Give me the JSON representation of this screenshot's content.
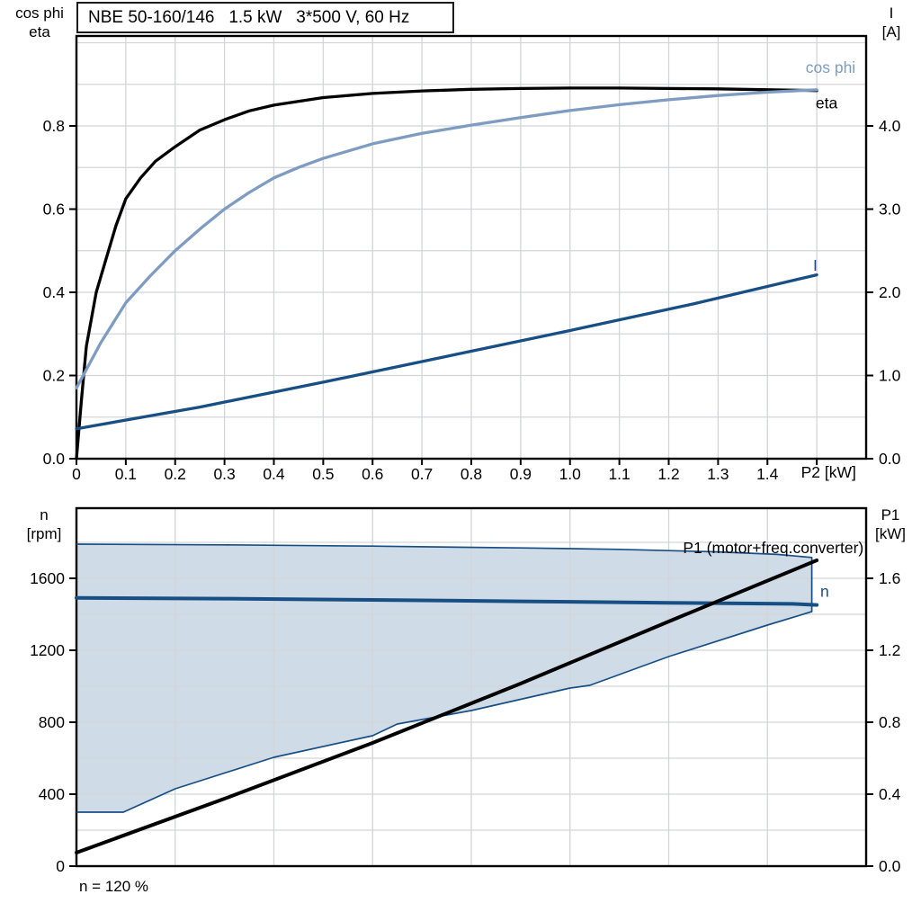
{
  "header": {
    "title": "NBE 50-160/146   1.5 kW   3*500 V, 60 Hz"
  },
  "labels": {
    "top_left": [
      "cos phi",
      "eta"
    ],
    "top_right": [
      "I",
      "[A]"
    ],
    "bottom_left": [
      "n",
      "[rpm]"
    ],
    "bottom_right": [
      "P1",
      "[kW]"
    ],
    "footnote": "n = 120 %"
  },
  "colors": {
    "black": "#000000",
    "dark_blue": "#174F85",
    "light_blue": "#7E9CC1",
    "area_fill": "#CFDBE7",
    "grid": "#D3D5D8",
    "frame": "#000000"
  },
  "chart_data": [
    {
      "type": "line",
      "title": "NBE 50-160/146   1.5 kW   3*500 V, 60 Hz",
      "xlabel": "P2 [kW]",
      "ylabel_left": "cos phi / eta",
      "ylabel_right": "I [A]",
      "x_axis": {
        "min": 0,
        "max": 1.6,
        "grid_step": 0.1,
        "ticks": [
          {
            "v": 0,
            "label": "0"
          },
          {
            "v": 0.1,
            "label": "0.1"
          },
          {
            "v": 0.2,
            "label": "0.2"
          },
          {
            "v": 0.3,
            "label": "0.3"
          },
          {
            "v": 0.4,
            "label": "0.4"
          },
          {
            "v": 0.5,
            "label": "0.5"
          },
          {
            "v": 0.6,
            "label": "0.6"
          },
          {
            "v": 0.7,
            "label": "0.7"
          },
          {
            "v": 0.8,
            "label": "0.8"
          },
          {
            "v": 0.9,
            "label": "0.9"
          },
          {
            "v": 1.0,
            "label": "1.0"
          },
          {
            "v": 1.1,
            "label": "1.1"
          },
          {
            "v": 1.2,
            "label": "1.2"
          },
          {
            "v": 1.3,
            "label": "1.3"
          },
          {
            "v": 1.4,
            "label": "1.4"
          },
          {
            "v": 1.5,
            "label": ""
          }
        ]
      },
      "y_left": {
        "min": 0,
        "max": 1.0162,
        "grid_step": 0.1,
        "ticks": [
          {
            "v": 0,
            "label": "0.0"
          },
          {
            "v": 0.2,
            "label": "0.2"
          },
          {
            "v": 0.4,
            "label": "0.4"
          },
          {
            "v": 0.6,
            "label": "0.6"
          },
          {
            "v": 0.8,
            "label": "0.8"
          }
        ]
      },
      "y_right": {
        "min": 0,
        "max": 5.081,
        "ticks": [
          {
            "v": 0,
            "label": "0.0"
          },
          {
            "v": 1,
            "label": "1.0"
          },
          {
            "v": 2,
            "label": "2.0"
          },
          {
            "v": 3,
            "label": "3.0"
          },
          {
            "v": 4,
            "label": "4.0"
          }
        ]
      },
      "series": [
        {
          "name": "eta",
          "axis": "left",
          "color": "black",
          "width": 3.3,
          "points": [
            [
              0,
              0
            ],
            [
              0.01,
              0.14
            ],
            [
              0.02,
              0.27
            ],
            [
              0.04,
              0.4
            ],
            [
              0.06,
              0.48
            ],
            [
              0.08,
              0.56
            ],
            [
              0.1,
              0.625
            ],
            [
              0.13,
              0.675
            ],
            [
              0.16,
              0.715
            ],
            [
              0.2,
              0.75
            ],
            [
              0.25,
              0.79
            ],
            [
              0.3,
              0.815
            ],
            [
              0.35,
              0.836
            ],
            [
              0.4,
              0.85
            ],
            [
              0.5,
              0.868
            ],
            [
              0.6,
              0.878
            ],
            [
              0.7,
              0.884
            ],
            [
              0.8,
              0.888
            ],
            [
              0.9,
              0.89
            ],
            [
              1.0,
              0.891
            ],
            [
              1.1,
              0.891
            ],
            [
              1.2,
              0.89
            ],
            [
              1.3,
              0.889
            ],
            [
              1.4,
              0.887
            ],
            [
              1.5,
              0.885
            ]
          ]
        },
        {
          "name": "cos phi",
          "axis": "left",
          "color": "light_blue",
          "width": 3.3,
          "points": [
            [
              0,
              0.17
            ],
            [
              0.05,
              0.28
            ],
            [
              0.1,
              0.375
            ],
            [
              0.15,
              0.44
            ],
            [
              0.2,
              0.5
            ],
            [
              0.25,
              0.552
            ],
            [
              0.3,
              0.6
            ],
            [
              0.35,
              0.64
            ],
            [
              0.4,
              0.675
            ],
            [
              0.45,
              0.7
            ],
            [
              0.5,
              0.722
            ],
            [
              0.6,
              0.757
            ],
            [
              0.7,
              0.782
            ],
            [
              0.8,
              0.802
            ],
            [
              0.9,
              0.82
            ],
            [
              1.0,
              0.837
            ],
            [
              1.1,
              0.851
            ],
            [
              1.2,
              0.863
            ],
            [
              1.3,
              0.873
            ],
            [
              1.4,
              0.881
            ],
            [
              1.5,
              0.887
            ]
          ]
        },
        {
          "name": "I",
          "axis": "right",
          "color": "dark_blue",
          "width": 3.3,
          "points": [
            [
              0,
              0.36
            ],
            [
              0.25,
              0.62
            ],
            [
              0.5,
              0.92
            ],
            [
              0.75,
              1.23
            ],
            [
              1.0,
              1.54
            ],
            [
              1.25,
              1.86
            ],
            [
              1.5,
              2.21
            ]
          ]
        }
      ],
      "annotations": [
        {
          "text": "cos phi",
          "x": 1.528,
          "y": 0.928,
          "color": "light_blue",
          "anchor": "middle",
          "size": 17.5
        },
        {
          "text": "eta",
          "x": 1.52,
          "y": 0.842,
          "color": "black",
          "anchor": "middle",
          "size": 17.5
        },
        {
          "text": "I",
          "x": 1.497,
          "y": 0.452,
          "color": "dark_blue",
          "anchor": "middle",
          "size": 17.5
        },
        {
          "text": "P2 [kW]",
          "x": 1.468,
          "y": -0.0455,
          "color": "black",
          "anchor": "start",
          "size": 17.5
        }
      ]
    },
    {
      "type": "line",
      "xlabel": "",
      "ylabel_left": "n [rpm]",
      "ylabel_right": "P1 [kW]",
      "x_axis": {
        "min": 0,
        "max": 1.6,
        "grid_step": 0.2,
        "ticks": []
      },
      "y_left": {
        "min": 0,
        "max": 1990,
        "grid_step": 200,
        "ticks": [
          {
            "v": 0,
            "label": "0"
          },
          {
            "v": 400,
            "label": "400"
          },
          {
            "v": 800,
            "label": "800"
          },
          {
            "v": 1200,
            "label": "1200"
          },
          {
            "v": 1600,
            "label": "1600"
          }
        ]
      },
      "y_right": {
        "min": 0,
        "max": 1.99,
        "ticks": [
          {
            "v": 0,
            "label": "0.0"
          },
          {
            "v": 0.4,
            "label": "0.4"
          },
          {
            "v": 0.8,
            "label": "0.8"
          },
          {
            "v": 1.2,
            "label": "1.2"
          },
          {
            "v": 1.6,
            "label": "1.6"
          }
        ]
      },
      "area": {
        "name": "speed-operating-region",
        "top": [
          [
            0,
            1790
          ],
          [
            0.3,
            1786
          ],
          [
            0.6,
            1779
          ],
          [
            0.9,
            1769
          ],
          [
            1.1,
            1761
          ],
          [
            1.3,
            1747
          ],
          [
            1.42,
            1733
          ],
          [
            1.49,
            1716
          ]
        ],
        "bottom": [
          [
            0,
            300
          ],
          [
            0.095,
            300
          ],
          [
            0.2,
            430
          ],
          [
            0.4,
            605
          ],
          [
            0.6,
            725
          ],
          [
            0.65,
            790
          ],
          [
            0.8,
            865
          ],
          [
            1.0,
            990
          ],
          [
            1.04,
            1005
          ],
          [
            1.2,
            1165
          ],
          [
            1.4,
            1340
          ],
          [
            1.49,
            1415
          ]
        ]
      },
      "series": [
        {
          "name": "n",
          "axis": "left",
          "color": "dark_blue",
          "width": 4,
          "points": [
            [
              0,
              1491
            ],
            [
              0.3,
              1487
            ],
            [
              0.6,
              1480
            ],
            [
              0.9,
              1472
            ],
            [
              1.2,
              1464
            ],
            [
              1.45,
              1458
            ],
            [
              1.5,
              1452
            ]
          ]
        },
        {
          "name": "P1 (motor+freq.converter)",
          "axis": "right",
          "color": "black",
          "width": 4,
          "points": [
            [
              0,
              0.075
            ],
            [
              0.3,
              0.375
            ],
            [
              0.6,
              0.685
            ],
            [
              0.9,
              1.015
            ],
            [
              1.2,
              1.36
            ],
            [
              1.5,
              1.7
            ]
          ]
        }
      ],
      "annotations": [
        {
          "text": "P1 (motor+freq.converter)",
          "x": 1.595,
          "y": 1740,
          "color": "black",
          "anchor": "end",
          "size": 17.5
        },
        {
          "text": "n",
          "x": 1.507,
          "y": 1497,
          "color": "dark_blue",
          "anchor": "start",
          "size": 17.5
        }
      ]
    }
  ]
}
